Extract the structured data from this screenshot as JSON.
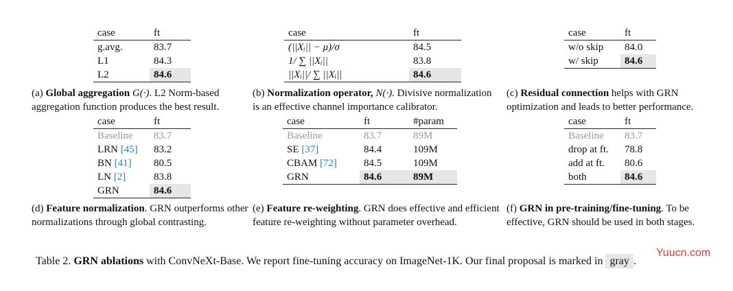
{
  "panels": {
    "a": {
      "headers": [
        "case",
        "ft"
      ],
      "rows": [
        [
          "g.avg.",
          "83.7"
        ],
        [
          "L1",
          "84.3"
        ],
        [
          "L2",
          "84.6"
        ]
      ],
      "caption_label": "(a)",
      "caption_bold": "Global aggregation",
      "caption_math": "G(·)",
      "caption_rest": ". L2 Norm-based aggregation function produces the best result."
    },
    "b": {
      "headers": [
        "case",
        "ft"
      ],
      "rows": [
        [
          "(||Xᵢ|| − μ)/σ",
          "84.5"
        ],
        [
          "1/ ∑ ||Xᵢ||",
          "83.8"
        ],
        [
          "||Xᵢ||/ ∑ ||Xᵢ||",
          "84.6"
        ]
      ],
      "caption_label": "(b)",
      "caption_bold": "Normalization operator,",
      "caption_math": "N(·)",
      "caption_rest": ". Divisive normalization is an effective channel importance calibrator."
    },
    "c": {
      "headers": [
        "case",
        "ft"
      ],
      "rows": [
        [
          "w/o skip",
          "84.0"
        ],
        [
          "w/ skip",
          "84.6"
        ]
      ],
      "caption_label": "(c)",
      "caption_bold": "Residual connection",
      "caption_rest": " helps with GRN optimization and leads to better performance."
    },
    "d": {
      "headers": [
        "case",
        "ft"
      ],
      "rows": [
        [
          "Baseline",
          "83.7"
        ],
        [
          "LRN ",
          "83.2"
        ],
        [
          "BN ",
          "80.5"
        ],
        [
          "LN ",
          "83.8"
        ],
        [
          "GRN",
          "84.6"
        ]
      ],
      "refs": [
        "",
        "[45]",
        "[41]",
        "[2]",
        ""
      ],
      "caption_label": "(d)",
      "caption_bold": "Feature normalization",
      "caption_rest": ". GRN outperforms other normalizations through global contrasting."
    },
    "e": {
      "headers": [
        "case",
        "ft",
        "#param"
      ],
      "rows": [
        [
          "Baseline",
          "83.7",
          "89M"
        ],
        [
          "SE ",
          "84.4",
          "109M"
        ],
        [
          "CBAM ",
          "84.5",
          "109M"
        ],
        [
          "GRN",
          "84.6",
          "89M"
        ]
      ],
      "refs": [
        "",
        "[37]",
        "[72]",
        ""
      ],
      "caption_label": "(e)",
      "caption_bold": "Feature re-weighting",
      "caption_rest": ". GRN does effective and efficient feature re-weighting without parameter overhead."
    },
    "f": {
      "headers": [
        "case",
        "ft"
      ],
      "rows": [
        [
          "Baseline",
          "83.7"
        ],
        [
          "drop at ft.",
          "78.8"
        ],
        [
          "add at ft.",
          "80.6"
        ],
        [
          "both",
          "84.6"
        ]
      ],
      "caption_label": "(f)",
      "caption_bold": "GRN in pre-training/fine-tuning",
      "caption_rest": ". To be effective, GRN should be used in both stages."
    }
  },
  "main_caption": {
    "prefix": "Table 2. ",
    "bold": "GRN ablations",
    "text": " with ConvNeXt-Base. We report fine-tuning accuracy on ImageNet-1K. Our final proposal is marked in ",
    "gray_word": "gray",
    "suffix": "."
  },
  "watermark": "Yuucn.com"
}
